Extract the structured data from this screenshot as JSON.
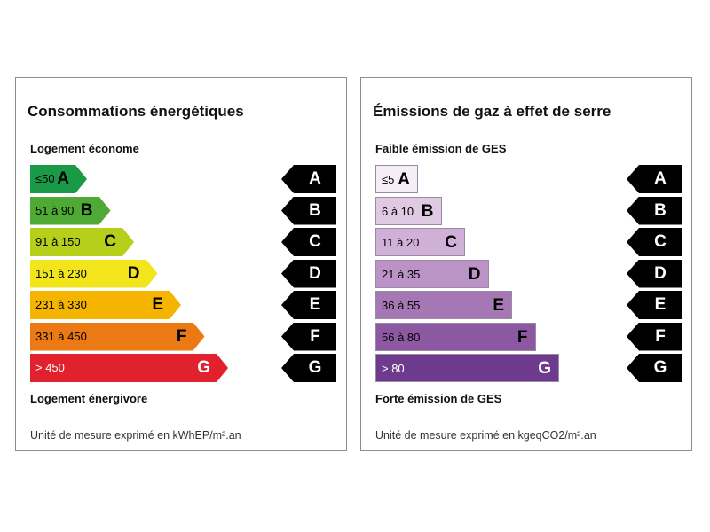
{
  "panels": [
    {
      "title": "Consommations énergétiques",
      "label_top": "Logement économe",
      "label_bottom": "Logement énergivore",
      "unit_note": "Unité de mesure exprimé en kWhEP/m².an"
    },
    {
      "title": "Émissions de gaz à effet de serre",
      "label_top": "Faible émission de GES",
      "label_bottom": "Forte émission de GES",
      "unit_note": "Unité de mesure exprimé en kgeqCO2/m².an"
    }
  ],
  "scale_tags": [
    "A",
    "B",
    "C",
    "D",
    "E",
    "F",
    "G"
  ],
  "chart_data": [
    {
      "type": "bar",
      "orientation": "horizontal",
      "title": "Consommations énergétiques",
      "categories": [
        "A",
        "B",
        "C",
        "D",
        "E",
        "F",
        "G"
      ],
      "ranges": [
        "≤50",
        "51 à 90",
        "91 à 150",
        "151 à 230",
        "231 à 330",
        "331 à 450",
        "> 450"
      ],
      "rank": [
        1,
        2,
        3,
        4,
        5,
        6,
        7
      ],
      "colors": [
        "#1a9a46",
        "#4eaa35",
        "#b5cf1b",
        "#f2e51c",
        "#f5b400",
        "#ec7a14",
        "#e2212e"
      ],
      "text_colors": [
        "#000000",
        "#000000",
        "#000000",
        "#000000",
        "#000000",
        "#000000",
        "#ffffff"
      ]
    },
    {
      "type": "bar",
      "orientation": "horizontal",
      "title": "Émissions de gaz à effet de serre",
      "categories": [
        "A",
        "B",
        "C",
        "D",
        "E",
        "F",
        "G"
      ],
      "ranges": [
        "≤5",
        "6 à 10",
        "11 à 20",
        "21 à 35",
        "36 à 55",
        "56 à 80",
        "> 80"
      ],
      "rank": [
        1,
        2,
        3,
        4,
        5,
        6,
        7
      ],
      "colors": [
        "#f6eef7",
        "#e0c9e2",
        "#d0b0d6",
        "#bb93c6",
        "#a677b5",
        "#8d58a2",
        "#6d3a8e"
      ],
      "text_colors": [
        "#000000",
        "#000000",
        "#000000",
        "#000000",
        "#000000",
        "#000000",
        "#ffffff"
      ]
    }
  ]
}
